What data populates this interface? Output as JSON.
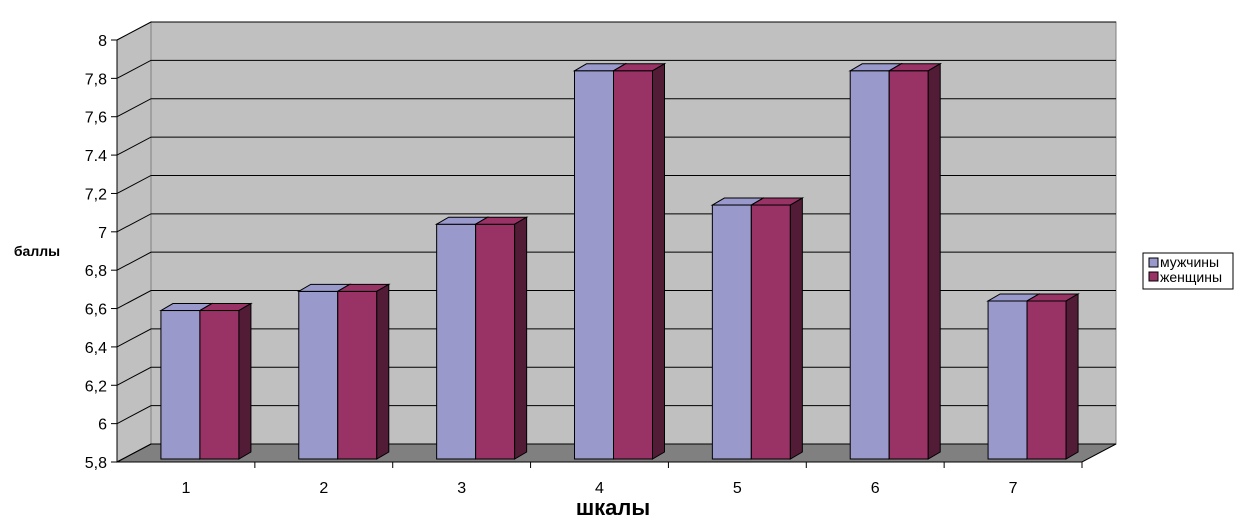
{
  "chart_data": {
    "type": "bar",
    "categories": [
      "1",
      "2",
      "3",
      "4",
      "5",
      "6",
      "7"
    ],
    "series": [
      {
        "name": "мужчины",
        "values": [
          6.6,
          6.7,
          7.05,
          7.85,
          7.15,
          7.85,
          6.65
        ],
        "color": "#9999cc",
        "dark": "#6a6a99"
      },
      {
        "name": "женщины",
        "values": [
          6.6,
          6.7,
          7.05,
          7.85,
          7.15,
          7.85,
          6.65
        ],
        "color": "#993366",
        "dark": "#521c37"
      }
    ],
    "yticks": [
      "5,8",
      "6",
      "6,2",
      "6,4",
      "6,6",
      "6,8",
      "7",
      "7,2",
      "7.4",
      "7,6",
      "7,8",
      "8"
    ],
    "ylim": [
      5.8,
      8
    ],
    "xlabel": "шкалы",
    "ylabel": "баллы",
    "grid": true,
    "legend_position": "right",
    "colors": {
      "wall": "#c0c0c0",
      "floor": "#808080",
      "grid": "#000000"
    }
  }
}
